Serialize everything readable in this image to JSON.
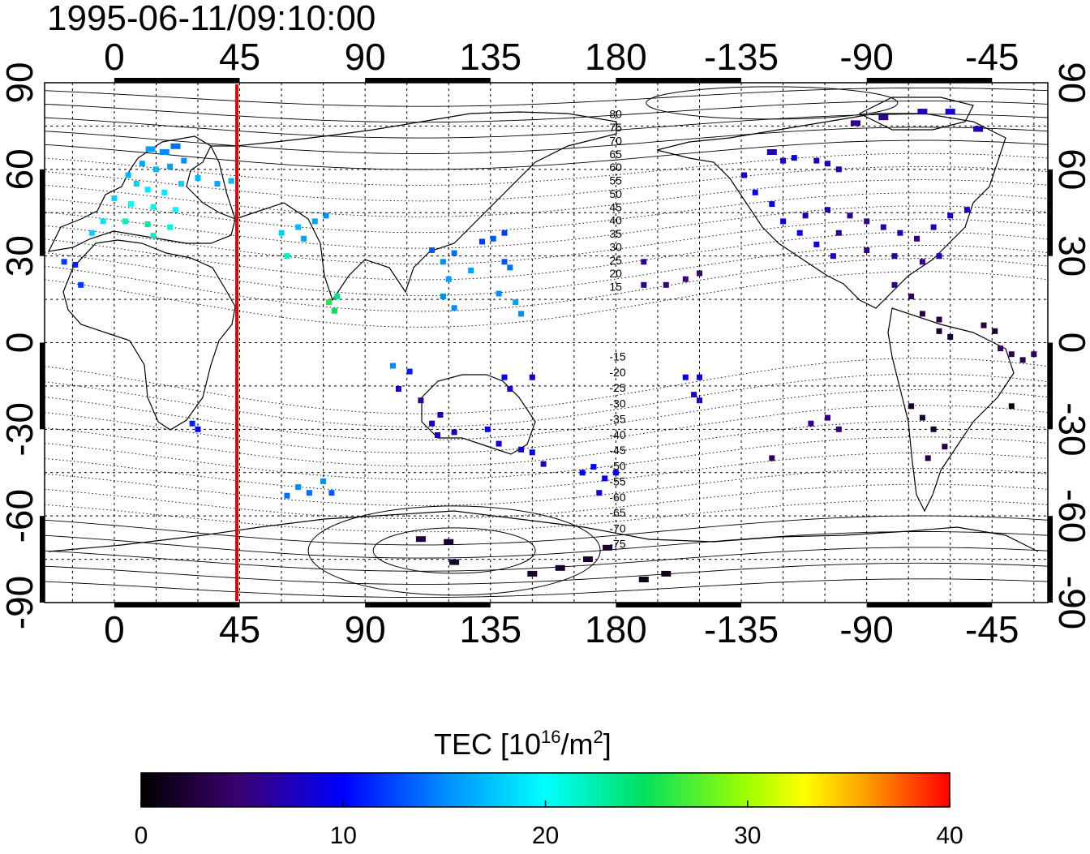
{
  "title": "1995-06-11/09:10:00",
  "x_ticks": [
    "0",
    "45",
    "90",
    "135",
    "180",
    "-135",
    "-90",
    "-45"
  ],
  "y_ticks": [
    "-90",
    "-60",
    "-30",
    "0",
    "30",
    "60",
    "90"
  ],
  "contour_labels_north": [
    "80",
    "75",
    "70",
    "65",
    "60",
    "55",
    "50",
    "45",
    "40",
    "35",
    "30",
    "25",
    "20",
    "15"
  ],
  "contour_labels_south": [
    "-15",
    "-20",
    "-25",
    "-30",
    "-35",
    "-40",
    "-45",
    "-50",
    "-55",
    "-60",
    "-65",
    "-70",
    "-75"
  ],
  "colorbar": {
    "label_main": "TEC  [10",
    "label_exp": "16",
    "label_mid": "/m",
    "label_exp2": "2",
    "label_end": "]",
    "min": 0,
    "max": 40,
    "ticks": [
      "0",
      "10",
      "20",
      "30",
      "40"
    ]
  },
  "colors": {
    "terminator": "#e00000",
    "frame": "#000000"
  },
  "chart_data": {
    "type": "scatter",
    "title": "1995-06-11/09:10:00",
    "xlabel": "",
    "ylabel": "",
    "xlim": [
      -25,
      335
    ],
    "ylim": [
      -90,
      90
    ],
    "x_tick_values": [
      0,
      45,
      90,
      135,
      180,
      225,
      270,
      315
    ],
    "grid": true,
    "terminator_longitude": 44,
    "colorbar_range": [
      0,
      40
    ],
    "points": [
      [
        13,
        67,
        16
      ],
      [
        18,
        66,
        15
      ],
      [
        22,
        68,
        14
      ],
      [
        10,
        62,
        16
      ],
      [
        15,
        60,
        17
      ],
      [
        20,
        61,
        16
      ],
      [
        25,
        63,
        15
      ],
      [
        5,
        58,
        17
      ],
      [
        8,
        55,
        18
      ],
      [
        12,
        53,
        19
      ],
      [
        18,
        52,
        19
      ],
      [
        24,
        55,
        18
      ],
      [
        30,
        57,
        17
      ],
      [
        37,
        55,
        16
      ],
      [
        42,
        56,
        17
      ],
      [
        0,
        50,
        18
      ],
      [
        6,
        48,
        20
      ],
      [
        14,
        47,
        21
      ],
      [
        22,
        46,
        20
      ],
      [
        -4,
        42,
        19
      ],
      [
        4,
        42,
        22
      ],
      [
        12,
        41,
        23
      ],
      [
        20,
        40,
        21
      ],
      [
        -8,
        38,
        18
      ],
      [
        14,
        37,
        22
      ],
      [
        -18,
        28,
        12
      ],
      [
        -14,
        27,
        11
      ],
      [
        -12,
        20,
        12
      ],
      [
        28,
        -28,
        11
      ],
      [
        30,
        -30,
        10
      ],
      [
        60,
        38,
        18
      ],
      [
        66,
        40,
        17
      ],
      [
        72,
        42,
        16
      ],
      [
        76,
        44,
        15
      ],
      [
        68,
        36,
        16
      ],
      [
        62,
        30,
        22
      ],
      [
        77,
        14,
        26
      ],
      [
        79,
        11,
        25
      ],
      [
        80,
        16,
        24
      ],
      [
        66,
        -50,
        15
      ],
      [
        70,
        -52,
        14
      ],
      [
        75,
        -48,
        15
      ],
      [
        78,
        -52,
        13
      ],
      [
        62,
        -53,
        14
      ],
      [
        114,
        32,
        13
      ],
      [
        118,
        28,
        15
      ],
      [
        122,
        31,
        14
      ],
      [
        120,
        22,
        16
      ],
      [
        118,
        16,
        15
      ],
      [
        122,
        12,
        15
      ],
      [
        128,
        25,
        16
      ],
      [
        132,
        35,
        12
      ],
      [
        136,
        36,
        13
      ],
      [
        140,
        38,
        12
      ],
      [
        140,
        28,
        13
      ],
      [
        142,
        26,
        14
      ],
      [
        138,
        17,
        15
      ],
      [
        144,
        14,
        16
      ],
      [
        146,
        10,
        15
      ],
      [
        100,
        -8,
        15
      ],
      [
        106,
        -10,
        11
      ],
      [
        102,
        -16,
        7
      ],
      [
        110,
        -20,
        6
      ],
      [
        114,
        -28,
        8
      ],
      [
        116,
        -32,
        8
      ],
      [
        122,
        -31,
        7
      ],
      [
        117,
        -25,
        7
      ],
      [
        140,
        -12,
        10
      ],
      [
        142,
        -16,
        8
      ],
      [
        150,
        -12,
        8
      ],
      [
        134,
        -30,
        10
      ],
      [
        138,
        -35,
        8
      ],
      [
        146,
        -37,
        9
      ],
      [
        150,
        -38,
        10
      ],
      [
        154,
        -42,
        7
      ],
      [
        168,
        -45,
        10
      ],
      [
        172,
        -43,
        10
      ],
      [
        176,
        -47,
        9
      ],
      [
        180,
        -45,
        10
      ],
      [
        174,
        -52,
        8
      ],
      [
        120,
        -69,
        2
      ],
      [
        122,
        -76,
        2
      ],
      [
        110,
        -68,
        3
      ],
      [
        150,
        -80,
        2
      ],
      [
        160,
        -78,
        2
      ],
      [
        170,
        -75,
        2
      ],
      [
        177,
        -71,
        2
      ],
      [
        190,
        -82,
        1
      ],
      [
        198,
        -80,
        1
      ],
      [
        198,
        20,
        5
      ],
      [
        205,
        22,
        5
      ],
      [
        210,
        24,
        5
      ],
      [
        190,
        28,
        6
      ],
      [
        190,
        20,
        6
      ],
      [
        205,
        -12,
        9
      ],
      [
        210,
        -12,
        9
      ],
      [
        208,
        -18,
        8
      ],
      [
        210,
        -20,
        8
      ],
      [
        236,
        66,
        7
      ],
      [
        240,
        63,
        8
      ],
      [
        244,
        64,
        9
      ],
      [
        252,
        63,
        8
      ],
      [
        256,
        62,
        7
      ],
      [
        260,
        60,
        7
      ],
      [
        226,
        58,
        8
      ],
      [
        230,
        52,
        9
      ],
      [
        236,
        48,
        9
      ],
      [
        240,
        42,
        9
      ],
      [
        246,
        38,
        9
      ],
      [
        252,
        34,
        9
      ],
      [
        258,
        30,
        8
      ],
      [
        248,
        44,
        7
      ],
      [
        256,
        46,
        7
      ],
      [
        264,
        44,
        6
      ],
      [
        270,
        42,
        6
      ],
      [
        276,
        40,
        7
      ],
      [
        282,
        38,
        7
      ],
      [
        288,
        36,
        6
      ],
      [
        294,
        40,
        7
      ],
      [
        300,
        44,
        8
      ],
      [
        306,
        46,
        8
      ],
      [
        260,
        38,
        6
      ],
      [
        270,
        32,
        6
      ],
      [
        280,
        30,
        6
      ],
      [
        290,
        28,
        6
      ],
      [
        296,
        30,
        7
      ],
      [
        266,
        76,
        6
      ],
      [
        276,
        78,
        6
      ],
      [
        290,
        80,
        7
      ],
      [
        300,
        80,
        8
      ],
      [
        310,
        74,
        7
      ],
      [
        280,
        20,
        5
      ],
      [
        286,
        16,
        4
      ],
      [
        290,
        10,
        3
      ],
      [
        296,
        8,
        3
      ],
      [
        300,
        2,
        2
      ],
      [
        286,
        -22,
        2
      ],
      [
        290,
        -26,
        2
      ],
      [
        294,
        -30,
        2
      ],
      [
        292,
        -40,
        3
      ],
      [
        298,
        -36,
        3
      ],
      [
        296,
        4,
        2
      ],
      [
        312,
        6,
        3
      ],
      [
        316,
        4,
        2
      ],
      [
        318,
        -2,
        4
      ],
      [
        322,
        -4,
        4
      ],
      [
        326,
        -6,
        3
      ],
      [
        330,
        -4,
        4
      ],
      [
        322,
        -22,
        1
      ],
      [
        250,
        -28,
        6
      ],
      [
        256,
        -26,
        6
      ],
      [
        260,
        -30,
        5
      ],
      [
        236,
        -40,
        4
      ]
    ],
    "contours_kind": "geomagnetic latitude"
  }
}
